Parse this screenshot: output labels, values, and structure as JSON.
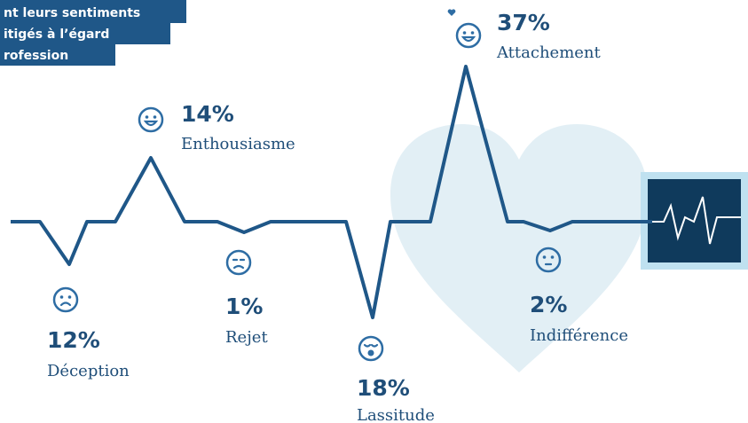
{
  "header": {
    "lines": [
      "nt leurs sentiments",
      "itigés à l’égard",
      "rofession"
    ]
  },
  "items": [
    {
      "percent": "12%",
      "label": "Déception"
    },
    {
      "percent": "14%",
      "label": "Enthousiasme"
    },
    {
      "percent": "1%",
      "label": "Rejet"
    },
    {
      "percent": "18%",
      "label": "Lassitude"
    },
    {
      "percent": "37%",
      "label": "Attachement"
    },
    {
      "percent": "2%",
      "label": "Indifférence"
    }
  ]
}
